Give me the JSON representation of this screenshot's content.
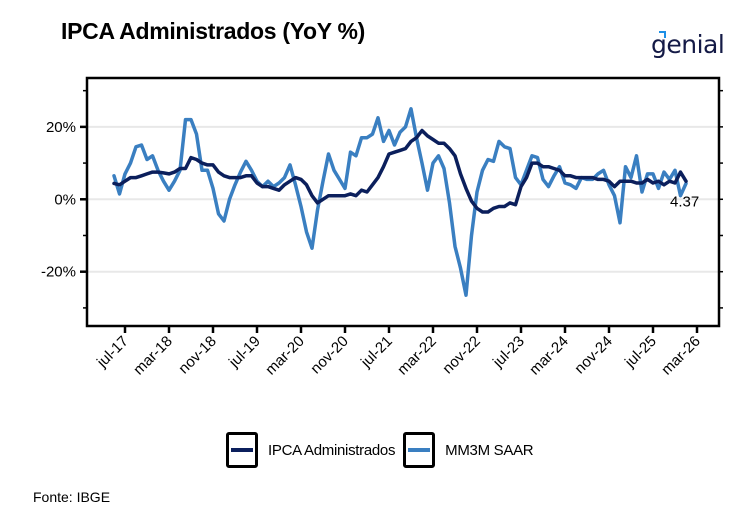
{
  "header": {
    "title": "IPCA Administrados (YoY %)",
    "logo_text": "genial"
  },
  "footer": {
    "source": "Fonte: IBGE"
  },
  "legend": {
    "items": [
      {
        "label": "IPCA Administrados",
        "color": "#0b1f5c"
      },
      {
        "label": "MM3M SAAR",
        "color": "#3a7fc1"
      }
    ]
  },
  "chart_data": {
    "type": "line",
    "title": "IPCA Administrados (YoY %)",
    "xlabel": "",
    "ylabel": "",
    "ylim": [
      -35,
      33.5
    ],
    "grid": "horizontal",
    "legend_position": "bottom",
    "y_ticks": [
      20,
      0,
      -20
    ],
    "y_tick_labels": [
      "20%",
      "0%",
      "-20%"
    ],
    "x_start": "may-17",
    "x_tick_labels": [
      "jul-17",
      "mar-18",
      "nov-18",
      "jul-19",
      "mar-20",
      "nov-20",
      "jul-21",
      "mar-22",
      "nov-22",
      "jul-23",
      "mar-24",
      "nov-24",
      "jul-25",
      "mar-26"
    ],
    "x_tick_month_offsets": [
      2,
      10,
      18,
      26,
      34,
      42,
      50,
      58,
      66,
      74,
      82,
      90,
      98,
      106
    ],
    "annotation": {
      "text": "4.37",
      "series": "MM3M SAAR",
      "value": 4.37
    },
    "series": [
      {
        "name": "IPCA Administrados",
        "color": "#0b1f5c",
        "values": [
          4.4,
          4,
          5,
          6,
          6,
          6.5,
          7,
          7.5,
          7.5,
          7.3,
          7,
          7.5,
          8.5,
          8.5,
          11.5,
          11,
          10,
          9.5,
          9.5,
          7.5,
          6.5,
          6,
          6,
          6,
          6.5,
          6.5,
          4.5,
          3.5,
          3.5,
          3,
          2.5,
          4,
          5,
          6,
          5.5,
          4,
          1,
          -1,
          0,
          1,
          1,
          1,
          1,
          1.5,
          1,
          2.5,
          2,
          4,
          6,
          9,
          12.5,
          13,
          13.5,
          14,
          16,
          17,
          19,
          17.5,
          16.5,
          15.5,
          15.5,
          14,
          12,
          7,
          3,
          -0.5,
          -2.5,
          -3.5,
          -3.5,
          -2.5,
          -2,
          -2,
          -1,
          -1.5,
          3.5,
          6,
          10,
          10,
          9,
          9,
          8.5,
          8,
          6.5,
          6.5,
          6,
          6,
          6,
          6,
          5.5,
          5.5,
          5,
          3.5,
          5,
          5,
          5,
          4.5,
          4.5,
          5.5,
          4.5,
          5,
          4,
          5,
          4.5,
          7.5,
          5
        ]
      },
      {
        "name": "MM3M SAAR",
        "color": "#3a7fc1",
        "values": [
          6.5,
          1.5,
          7,
          10,
          14.5,
          15,
          11,
          12,
          8,
          5,
          2.5,
          5,
          8,
          22,
          22,
          18,
          8,
          8,
          3,
          -4,
          -6,
          0,
          4,
          7.5,
          10.5,
          8,
          5,
          3.5,
          5,
          3.5,
          4.5,
          6,
          9.5,
          4,
          -2,
          -9,
          -13.5,
          -3,
          5,
          12.5,
          8,
          5.5,
          3,
          13,
          12,
          17,
          17,
          18,
          22.5,
          16,
          19,
          15,
          18.5,
          20,
          25,
          17,
          10,
          2.5,
          10,
          12,
          8.5,
          -1,
          -13,
          -19,
          -26.5,
          -10,
          2,
          8,
          11,
          10.5,
          16,
          14.5,
          14,
          6,
          4,
          8,
          12,
          11.5,
          5.5,
          3.5,
          6.5,
          9,
          4.5,
          4,
          3,
          6,
          5.5,
          5.5,
          7,
          8,
          4,
          1,
          -6.5,
          9,
          6,
          12,
          2,
          7,
          7,
          3,
          7.5,
          5.5,
          8,
          1,
          4.37
        ]
      }
    ]
  }
}
